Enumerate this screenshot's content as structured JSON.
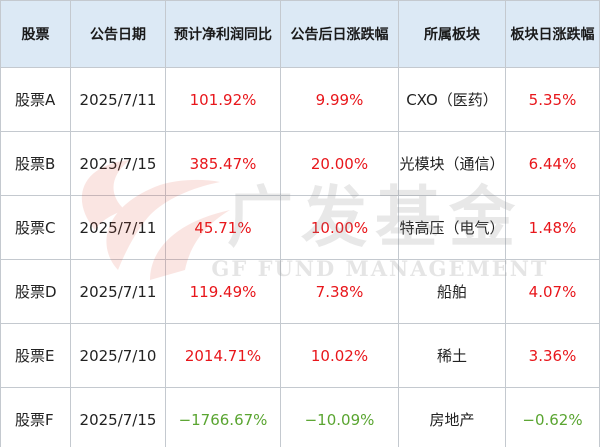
{
  "table": {
    "headers": [
      "股票",
      "公告日期",
      "预计净利润同比",
      "公告后日涨跌幅",
      "所属板块",
      "板块日涨跌幅"
    ],
    "rows": [
      {
        "stock": "股票A",
        "date": "2025/7/11",
        "profit_yoy": "101.92%",
        "post_change": "9.99%",
        "sector": "CXO（医药）",
        "sector_change": "5.35%"
      },
      {
        "stock": "股票B",
        "date": "2025/7/15",
        "profit_yoy": "385.47%",
        "post_change": "20.00%",
        "sector": "光模块（通信）",
        "sector_change": "6.44%"
      },
      {
        "stock": "股票C",
        "date": "2025/7/11",
        "profit_yoy": "45.71%",
        "post_change": "10.00%",
        "sector": "特高压（电气）",
        "sector_change": "1.48%"
      },
      {
        "stock": "股票D",
        "date": "2025/7/11",
        "profit_yoy": "119.49%",
        "post_change": "7.38%",
        "sector": "船舶",
        "sector_change": "4.07%"
      },
      {
        "stock": "股票E",
        "date": "2025/7/10",
        "profit_yoy": "2014.71%",
        "post_change": "10.02%",
        "sector": "稀土",
        "sector_change": "3.36%"
      },
      {
        "stock": "股票F",
        "date": "2025/7/15",
        "profit_yoy": "−1766.67%",
        "post_change": "−10.09%",
        "sector": "房地产",
        "sector_change": "−0.62%"
      }
    ]
  },
  "watermark": {
    "brand_cn": "广发基金",
    "brand_en": "GF FUND MANAGEMENT"
  },
  "colors": {
    "header_bg": "#dce9f5",
    "border": "#c4c9cf",
    "positive": "#e8161b",
    "negative": "#5aa531",
    "watermark_red": "#e0412a",
    "watermark_gray": "#8a8a8a"
  }
}
